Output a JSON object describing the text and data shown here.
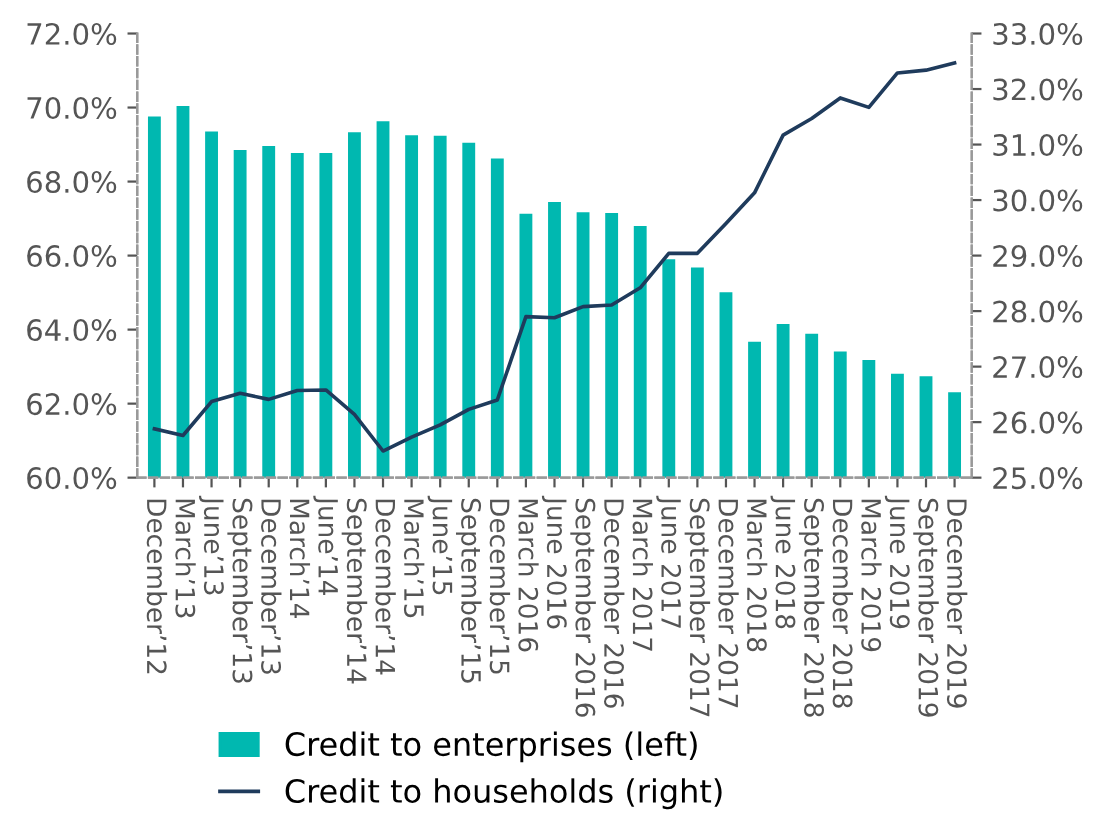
{
  "chart_data": {
    "type": "bar",
    "categories": [
      "December’12",
      "March’13",
      "June’13",
      "September’13",
      "December’13",
      "March’14",
      "June’14",
      "September’14",
      "December’14",
      "March’15",
      "June’15",
      "September’15",
      "December’15",
      "March 2016",
      "June 2016",
      "September 2016",
      "December 2016",
      "March 2017",
      "June 2017",
      "September 2017",
      "December 2017",
      "March 2018",
      "June 2018",
      "September 2018",
      "December 2018",
      "March 2019",
      "June 2019",
      "September 2019",
      "December 2019"
    ],
    "series": [
      {
        "name": "Credit to enterprises (left)",
        "color": "#00b8b0",
        "values": [
          69.76,
          70.04,
          69.35,
          68.85,
          68.96,
          68.77,
          68.77,
          69.33,
          69.63,
          69.25,
          69.24,
          69.05,
          68.62,
          67.13,
          67.45,
          67.17,
          67.15,
          66.8,
          65.9,
          65.68,
          65.01,
          63.67,
          64.15,
          63.89,
          63.41,
          63.18,
          62.81,
          62.74,
          62.31
        ]
      },
      {
        "name": "Credit to households (right)",
        "type": "line",
        "axis": "y2",
        "color": "#1f3b5c",
        "values": [
          25.88,
          25.76,
          26.37,
          26.52,
          26.41,
          26.57,
          26.58,
          26.14,
          25.48,
          25.73,
          25.95,
          26.23,
          26.4,
          27.9,
          27.88,
          28.08,
          28.11,
          28.42,
          29.04,
          29.04,
          29.58,
          30.13,
          31.17,
          31.47,
          31.84,
          31.67,
          32.29,
          32.34,
          32.47
        ]
      }
    ],
    "ylim": [
      60,
      72
    ],
    "yticks": [
      {
        "value": 60,
        "label": "60.0%"
      },
      {
        "value": 62,
        "label": "62.0%"
      },
      {
        "value": 64,
        "label": "64.0%"
      },
      {
        "value": 66,
        "label": "66.0%"
      },
      {
        "value": 68,
        "label": "68.0%"
      },
      {
        "value": 70,
        "label": "70.0%"
      },
      {
        "value": 72,
        "label": "72.0%"
      }
    ],
    "y2lim": [
      25,
      33
    ],
    "y2ticks": [
      {
        "value": 25,
        "label": "25.0%"
      },
      {
        "value": 26,
        "label": "26.0%"
      },
      {
        "value": 27,
        "label": "27.0%"
      },
      {
        "value": 28,
        "label": "28.0%"
      },
      {
        "value": 29,
        "label": "29.0%"
      },
      {
        "value": 30,
        "label": "30.0%"
      },
      {
        "value": 31,
        "label": "31.0%"
      },
      {
        "value": 32,
        "label": "32.0%"
      },
      {
        "value": 33,
        "label": "33.0%"
      }
    ],
    "grid": false,
    "legend": "bottom",
    "marker": "none",
    "line_style": "solid"
  }
}
